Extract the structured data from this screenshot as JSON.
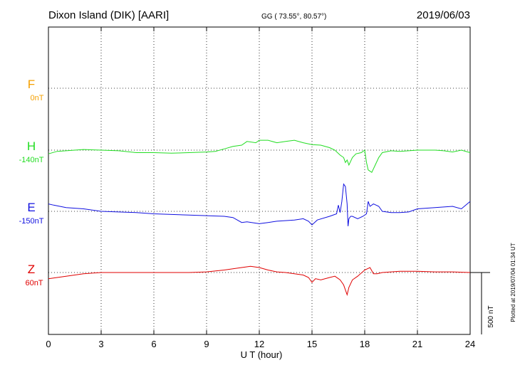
{
  "header": {
    "station": "Dixon Island (DIK)  [AARI]",
    "coords": "GG ( 73.55°,  80.57°)",
    "date": "2019/06/03"
  },
  "footer": {
    "plotted": "Plotted at 2019/07/04 01:34 UT"
  },
  "scale_bar_label": "500 nT",
  "colors": {
    "F": "#f5a000",
    "H": "#22dd22",
    "E": "#1010e0",
    "Z": "#e00000",
    "grid": "#000000"
  },
  "chart_data": {
    "type": "line",
    "xlabel": "U T (hour)",
    "xlim": [
      0,
      24
    ],
    "xticks": [
      "0",
      "3",
      "6",
      "9",
      "12",
      "15",
      "18",
      "21",
      "24"
    ],
    "components": [
      {
        "name": "F",
        "baseline": "0nT"
      },
      {
        "name": "H",
        "baseline": "-140nT"
      },
      {
        "name": "E",
        "baseline": "-150nT"
      },
      {
        "name": "Z",
        "baseline": "60nT"
      }
    ],
    "scale_nT": 500,
    "series": [
      {
        "name": "H",
        "x": [
          0,
          0.5,
          1,
          2,
          3,
          4,
          5,
          6,
          7,
          8,
          9,
          9.5,
          10,
          10.5,
          11,
          11.3,
          11.8,
          12,
          12.5,
          13,
          13.5,
          14,
          14.5,
          15,
          15.5,
          16,
          16.3,
          16.6,
          16.8,
          16.9,
          17.0,
          17.1,
          17.3,
          17.5,
          17.8,
          18.0,
          18.1,
          18.2,
          18.4,
          18.6,
          18.8,
          19,
          19.5,
          20,
          21,
          22,
          22.5,
          23,
          23.5,
          24
        ],
        "values": [
          -30,
          -10,
          -5,
          5,
          0,
          -5,
          -20,
          -20,
          -25,
          -20,
          -15,
          -10,
          10,
          30,
          40,
          70,
          60,
          80,
          80,
          60,
          70,
          80,
          60,
          45,
          40,
          20,
          0,
          -40,
          -60,
          -100,
          -80,
          -120,
          -60,
          -30,
          -20,
          0,
          -100,
          -160,
          -180,
          -120,
          -60,
          -20,
          -5,
          -10,
          0,
          0,
          -5,
          -15,
          0,
          -20
        ]
      },
      {
        "name": "E",
        "x": [
          0,
          0.3,
          1,
          2,
          3,
          4,
          5,
          6,
          7,
          8,
          9,
          10,
          10.5,
          11,
          11.3,
          12,
          12.5,
          13,
          14,
          14.5,
          14.8,
          15,
          15.3,
          16,
          16.4,
          16.5,
          16.6,
          16.7,
          16.8,
          16.9,
          17.0,
          17.05,
          17.1,
          17.2,
          17.3,
          17.6,
          17.9,
          18.1,
          18.2,
          18.3,
          18.5,
          18.8,
          19,
          19.5,
          20,
          20.5,
          21,
          22,
          23,
          23.5,
          24
        ],
        "values": [
          60,
          50,
          30,
          20,
          0,
          -5,
          -10,
          -20,
          -25,
          -30,
          -35,
          -40,
          -50,
          -90,
          -85,
          -100,
          -90,
          -80,
          -70,
          -60,
          -80,
          -110,
          -70,
          -40,
          -20,
          50,
          -10,
          80,
          220,
          200,
          60,
          -120,
          -60,
          -40,
          -40,
          -60,
          -40,
          -20,
          80,
          40,
          60,
          40,
          0,
          -10,
          -10,
          -5,
          20,
          30,
          40,
          20,
          80
        ]
      },
      {
        "name": "Z",
        "x": [
          0,
          0.5,
          1,
          2,
          3,
          4,
          5,
          6,
          7,
          8,
          9,
          10,
          11,
          11.5,
          12,
          12.5,
          13,
          13.5,
          14,
          14.5,
          14.8,
          15,
          15.2,
          15.5,
          16,
          16.3,
          16.6,
          16.8,
          17.0,
          17.1,
          17.3,
          17.6,
          18.0,
          18.3,
          18.5,
          18.7,
          19,
          19.5,
          20,
          21,
          22,
          23,
          24
        ],
        "values": [
          -50,
          -40,
          -30,
          -10,
          0,
          0,
          0,
          0,
          0,
          0,
          5,
          20,
          40,
          50,
          40,
          20,
          5,
          0,
          -10,
          -20,
          -40,
          -80,
          -50,
          -60,
          -40,
          -30,
          -60,
          -100,
          -180,
          -120,
          -60,
          -30,
          20,
          40,
          -10,
          -10,
          0,
          5,
          10,
          10,
          5,
          5,
          0
        ]
      }
    ]
  }
}
